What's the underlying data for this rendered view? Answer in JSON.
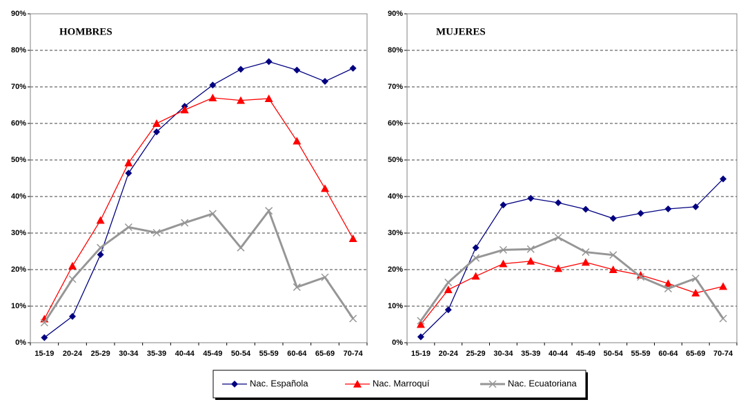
{
  "chart_data": [
    {
      "type": "line",
      "title": "HOMBRES",
      "categories": [
        "15-19",
        "20-24",
        "25-29",
        "30-34",
        "35-39",
        "40-44",
        "45-49",
        "50-54",
        "55-59",
        "60-64",
        "65-69",
        "70-74"
      ],
      "ylim": [
        0,
        90
      ],
      "yticks": [
        {
          "value": 0,
          "label": "0%"
        },
        {
          "value": 10,
          "label": "10%"
        },
        {
          "value": 20,
          "label": "20%"
        },
        {
          "value": 30,
          "label": "30%"
        },
        {
          "value": 40,
          "label": "40%"
        },
        {
          "value": 50,
          "label": "50%"
        },
        {
          "value": 60,
          "label": "60%"
        },
        {
          "value": 70,
          "label": "70%"
        },
        {
          "value": 80,
          "label": "80%"
        },
        {
          "value": 90,
          "label": "90%"
        }
      ],
      "grid": true,
      "series": [
        {
          "name": "Nac. Española",
          "color": "#000080",
          "marker": "diamond",
          "values": [
            1.4,
            7.2,
            24.1,
            46.4,
            57.7,
            64.7,
            70.5,
            74.8,
            76.9,
            74.6,
            71.5,
            75.1
          ]
        },
        {
          "name": "Nac. Marroquí",
          "color": "#ff0000",
          "marker": "triangle",
          "values": [
            6.5,
            21,
            33.5,
            49.2,
            60,
            63.7,
            67,
            66.3,
            66.8,
            55.2,
            42.2,
            28.5
          ]
        },
        {
          "name": "Nac. Ecuatoriana",
          "color": "#969696",
          "marker": "x",
          "values": [
            5.5,
            17.4,
            26,
            31.6,
            30.1,
            32.8,
            35.3,
            26,
            36.1,
            15.2,
            17.9,
            6.6
          ]
        }
      ]
    },
    {
      "type": "line",
      "title": "MUJERES",
      "categories": [
        "15-19",
        "20-24",
        "25-29",
        "30-34",
        "35-39",
        "40-44",
        "45-49",
        "50-54",
        "55-59",
        "60-64",
        "65-69",
        "70-74"
      ],
      "ylim": [
        0,
        90
      ],
      "yticks": [
        {
          "value": 0,
          "label": "0%"
        },
        {
          "value": 10,
          "label": "10%"
        },
        {
          "value": 20,
          "label": "20%"
        },
        {
          "value": 30,
          "label": "30%"
        },
        {
          "value": 40,
          "label": "40%"
        },
        {
          "value": 50,
          "label": "50%"
        },
        {
          "value": 60,
          "label": "60%"
        },
        {
          "value": 70,
          "label": "70%"
        },
        {
          "value": 80,
          "label": "80%"
        },
        {
          "value": 90,
          "label": "90%"
        }
      ],
      "grid": true,
      "series": [
        {
          "name": "Nac. Española",
          "color": "#000080",
          "marker": "diamond",
          "values": [
            1.6,
            9,
            26,
            37.7,
            39.5,
            38.3,
            36.5,
            34,
            35.4,
            36.6,
            37.2,
            44.8
          ]
        },
        {
          "name": "Nac. Marroquí",
          "color": "#ff0000",
          "marker": "triangle",
          "values": [
            5,
            14.5,
            18.2,
            21.6,
            22.3,
            20.3,
            22,
            20,
            18.5,
            16.2,
            13.6,
            15.4
          ]
        },
        {
          "name": "Nac. Ecuatoriana",
          "color": "#969696",
          "marker": "x",
          "values": [
            6,
            16.5,
            23.2,
            25.4,
            25.6,
            28.8,
            24.8,
            24,
            18,
            14.8,
            17.6,
            6.6
          ]
        }
      ]
    }
  ]
}
